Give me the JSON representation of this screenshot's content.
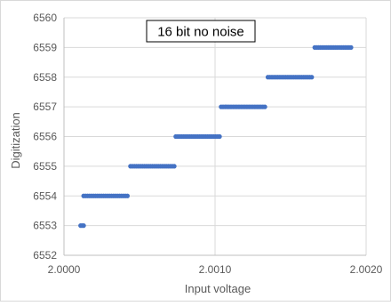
{
  "chart_data": {
    "type": "scatter",
    "title": "16 bit no noise",
    "xlabel": "Input voltage",
    "ylabel": "Digitization",
    "xlim": [
      2.0,
      2.002
    ],
    "ylim": [
      6552,
      6560
    ],
    "x_ticks": [
      {
        "value": 2.0,
        "label": "2.0000"
      },
      {
        "value": 2.001,
        "label": "2.0010"
      },
      {
        "value": 2.002,
        "label": "2.0020"
      }
    ],
    "y_ticks": [
      {
        "value": 6552,
        "label": "6552"
      },
      {
        "value": 6553,
        "label": "6553"
      },
      {
        "value": 6554,
        "label": "6554"
      },
      {
        "value": 6555,
        "label": "6555"
      },
      {
        "value": 6556,
        "label": "6556"
      },
      {
        "value": 6557,
        "label": "6557"
      },
      {
        "value": 6558,
        "label": "6558"
      },
      {
        "value": 6559,
        "label": "6559"
      },
      {
        "value": 6560,
        "label": "6560"
      }
    ],
    "grid": {
      "horizontal": true,
      "vertical": true
    },
    "marker_color": "#4472c4",
    "series": [
      {
        "segments": [
          {
            "y": 6553,
            "x_start": 2.00011,
            "x_end": 2.00013
          },
          {
            "y": 6554,
            "x_start": 2.00013,
            "x_end": 2.00042
          },
          {
            "y": 6555,
            "x_start": 2.00044,
            "x_end": 2.00073
          },
          {
            "y": 6556,
            "x_start": 2.00074,
            "x_end": 2.00103
          },
          {
            "y": 6557,
            "x_start": 2.00104,
            "x_end": 2.00133
          },
          {
            "y": 6558,
            "x_start": 2.00135,
            "x_end": 2.00164
          },
          {
            "y": 6559,
            "x_start": 2.00166,
            "x_end": 2.0019
          }
        ]
      }
    ]
  }
}
